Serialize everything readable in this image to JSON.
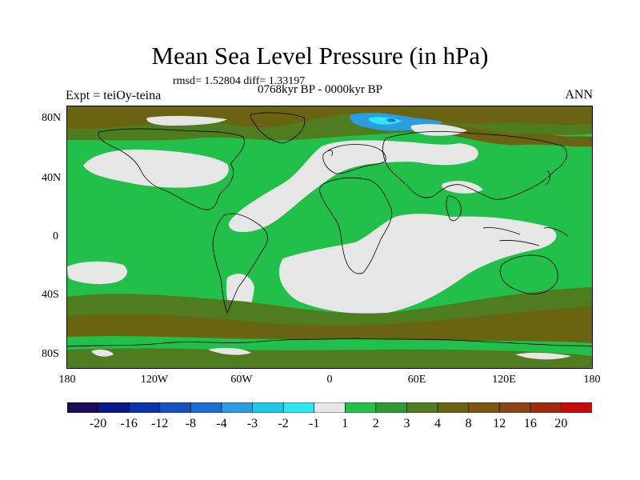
{
  "title": "Mean Sea Level Pressure (in hPa)",
  "stats": "rmsd= 1.52804  diff= 1.33197",
  "period": "0768kyr BP - 0000kyr BP",
  "expt": "Expt = teiOy-teina",
  "season": "ANN",
  "lat_labels": [
    "80N",
    "40N",
    "0",
    "40S",
    "80S"
  ],
  "lon_labels": [
    "180",
    "120W",
    "60W",
    "0",
    "60E",
    "120E",
    "180"
  ],
  "colorbar": {
    "colors": [
      "#1d0a5a",
      "#0a1a8c",
      "#0a35a8",
      "#1452c0",
      "#1a6fd0",
      "#2a9ce0",
      "#1ec8e6",
      "#2ee6f0",
      "#e6e6e6",
      "#22c04a",
      "#2e9a32",
      "#4e7c1e",
      "#6a6412",
      "#7c5414",
      "#8c4414",
      "#a02a10",
      "#c80c0c"
    ],
    "labels": [
      "-20",
      "-16",
      "-12",
      "-8",
      "-4",
      "-3",
      "-2",
      "-1",
      "1",
      "2",
      "3",
      "4",
      "8",
      "12",
      "16",
      "20"
    ]
  },
  "map_colors": {
    "ocean_base": "#22c04a",
    "neutral": "#e6e6e6",
    "olive": "#4e7c1e",
    "brown": "#6a6412",
    "cyan": "#2ee6f0",
    "light_blue": "#2a9ce0",
    "blue": "#1a6fd0",
    "coast": "#000000"
  }
}
